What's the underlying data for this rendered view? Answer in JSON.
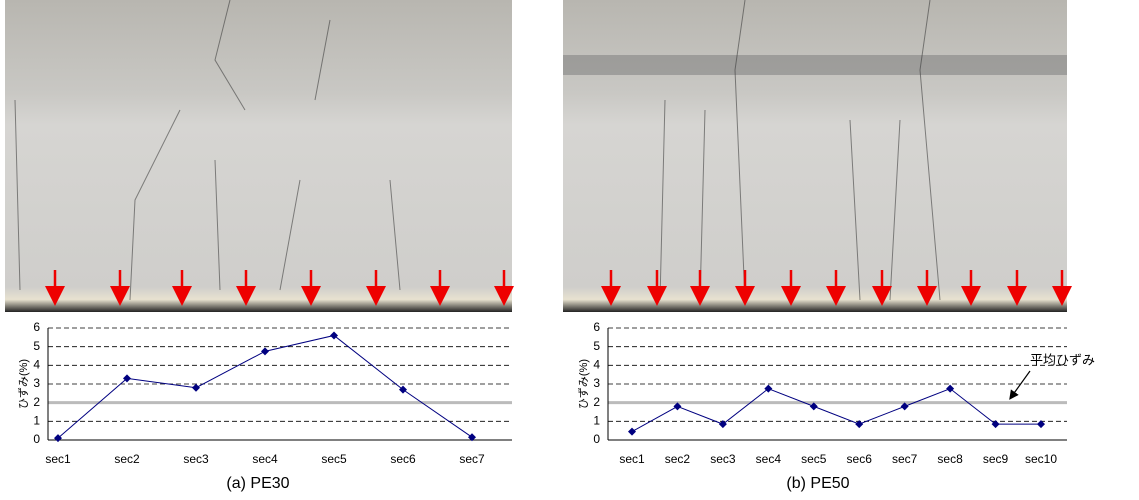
{
  "chart_data": [
    {
      "type": "line",
      "title": "(a) PE30",
      "y_label": "ひずみ(%)",
      "categories": [
        "sec1",
        "sec2",
        "sec3",
        "sec4",
        "sec5",
        "sec6",
        "sec7"
      ],
      "series": [
        {
          "color": "#000080",
          "values": [
            0.1,
            3.3,
            2.8,
            4.75,
            5.6,
            2.7,
            0.15
          ]
        }
      ],
      "ylim": [
        0,
        6
      ],
      "yticks": [
        0,
        1,
        2,
        3,
        4,
        5,
        6
      ],
      "grid": true,
      "hline": 2
    },
    {
      "type": "line",
      "title": "(b) PE50",
      "y_label": "ひずみ(%)",
      "annotation": "平均ひずみ",
      "categories": [
        "sec1",
        "sec2",
        "sec3",
        "sec4",
        "sec5",
        "sec6",
        "sec7",
        "sec8",
        "sec9",
        "sec10"
      ],
      "series": [
        {
          "color": "#000080",
          "values": [
            0.45,
            1.8,
            0.85,
            2.75,
            1.8,
            0.85,
            1.8,
            2.75,
            0.85,
            0.85
          ]
        }
      ],
      "ylim": [
        0,
        6
      ],
      "yticks": [
        0,
        1,
        2,
        3,
        4,
        5,
        6
      ],
      "grid": true,
      "hline": 2
    }
  ]
}
